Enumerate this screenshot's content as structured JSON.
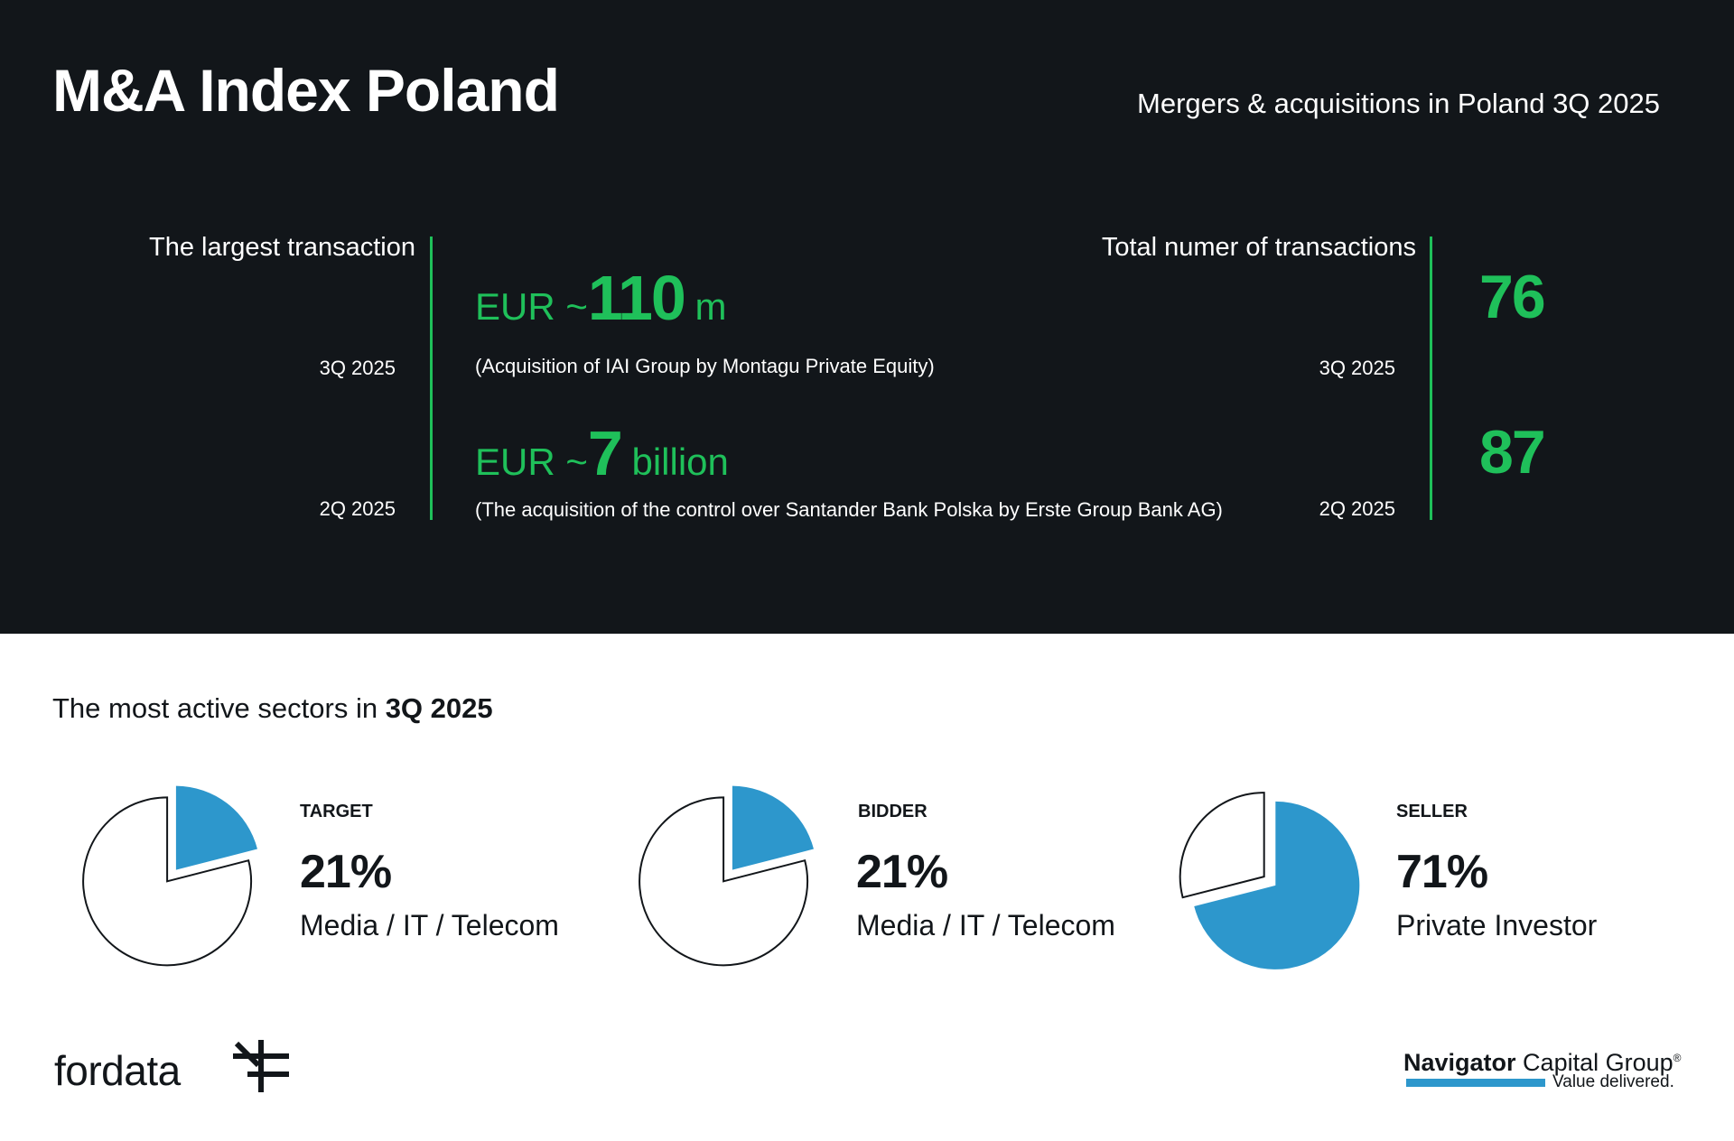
{
  "header": {
    "title": "M&A Index Poland",
    "subtitle": "Mergers & acquisitions in Poland 3Q 2025"
  },
  "largest_transaction": {
    "label": "The largest transaction",
    "rows": [
      {
        "quarter": "3Q 2025",
        "prefix": "EUR ~",
        "value": "110",
        "unit": " m",
        "description": "(Acquisition of IAI Group by Montagu Private Equity)"
      },
      {
        "quarter": "2Q 2025",
        "prefix": "EUR ~",
        "value": "7",
        "unit": " billion",
        "description": "(The acquisition of the control over Santander Bank Polska by Erste Group Bank AG)"
      }
    ]
  },
  "total_transactions": {
    "label": "Total numer of transactions",
    "rows": [
      {
        "quarter": "3Q 2025",
        "value": "76"
      },
      {
        "quarter": "2Q 2025",
        "value": "87"
      }
    ]
  },
  "sectors": {
    "title_prefix": "The most active sectors in ",
    "title_bold": "3Q 2025"
  },
  "chart_data": [
    {
      "type": "pie",
      "title": "TARGET",
      "percent": 21,
      "label": "21%",
      "sector": "Media / IT / Telecom",
      "colors": {
        "highlight": "#2d97cc",
        "rest": "#ffffff",
        "outline": "#12161a"
      }
    },
    {
      "type": "pie",
      "title": "BIDDER",
      "percent": 21,
      "label": "21%",
      "sector": "Media / IT / Telecom",
      "colors": {
        "highlight": "#2d97cc",
        "rest": "#ffffff",
        "outline": "#12161a"
      }
    },
    {
      "type": "pie",
      "title": "SELLER",
      "percent": 71,
      "label": "71%",
      "sector": "Private Investor",
      "colors": {
        "highlight": "#2d97cc",
        "rest": "#ffffff",
        "outline": "#12161a"
      }
    }
  ],
  "footer": {
    "fordata": "fordata",
    "navigator_bold": "Navigator",
    "navigator_rest": " Capital Group",
    "registered": "®",
    "tagline": "Value delivered."
  },
  "colors": {
    "dark_bg": "#12161a",
    "accent_green": "#1fc05a",
    "accent_blue": "#2d97cc"
  }
}
